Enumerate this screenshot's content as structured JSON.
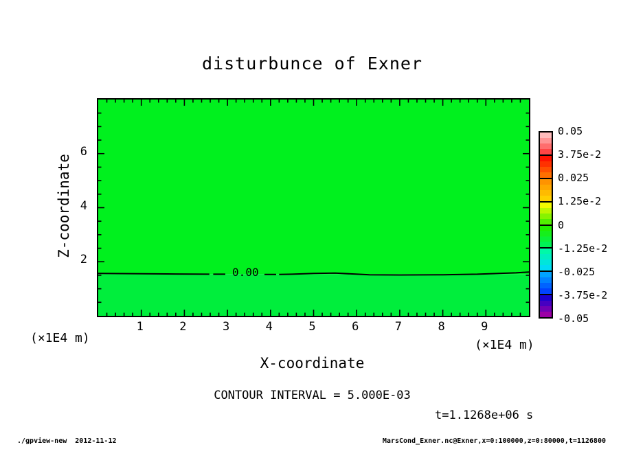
{
  "chart_data": {
    "type": "heatmap",
    "subtype": "filled-contour",
    "title": "disturbunce of Exner",
    "xlabel": "X-coordinate",
    "ylabel": "Z-coordinate",
    "x_unit_label_left": "(×1E4 m)",
    "x_unit_label_right": "(×1E4 m)",
    "xlim": [
      0,
      10
    ],
    "ylim": [
      0,
      8
    ],
    "x_ticks": [
      1,
      2,
      3,
      4,
      5,
      6,
      7,
      8,
      9
    ],
    "x_minor_step": 0.2,
    "y_ticks": [
      2,
      4,
      6
    ],
    "y_minor_step": 0.5,
    "grid": false,
    "fill_color_upper": "#00f11e",
    "fill_color_lower": "#00ee3c",
    "field_description": "near-zero field, uniform green band; single 0.00 contour at z≈1.55 (×1E4 m)",
    "contour": {
      "level": 0,
      "level_label": "0.00",
      "label_x": 3.45,
      "label_z": 1.54,
      "segments": [
        [
          [
            0,
            1.57
          ],
          [
            0.8,
            1.56
          ],
          [
            1.6,
            1.55
          ],
          [
            2.58,
            1.54
          ]
        ],
        [
          [
            2.67,
            1.54
          ],
          [
            2.95,
            1.54
          ]
        ],
        [
          [
            3.86,
            1.53
          ],
          [
            4.13,
            1.53
          ]
        ],
        [
          [
            4.2,
            1.53
          ],
          [
            4.5,
            1.54
          ],
          [
            5.0,
            1.57
          ],
          [
            5.5,
            1.58
          ],
          [
            5.9,
            1.55
          ],
          [
            6.3,
            1.52
          ],
          [
            7.0,
            1.51
          ],
          [
            8.0,
            1.52
          ],
          [
            8.8,
            1.54
          ],
          [
            9.3,
            1.57
          ],
          [
            9.7,
            1.59
          ],
          [
            10,
            1.62
          ]
        ]
      ]
    },
    "contour_interval_text": "CONTOUR INTERVAL = 5.000E-03",
    "time_label": "t=1.1268e+06 s",
    "colorbar": {
      "position": "right",
      "tick_labels": [
        "0.05",
        "3.75e-2",
        "0.025",
        "1.25e-2",
        "0",
        "-1.25e-2",
        "-0.025",
        "-3.75e-2",
        "-0.05"
      ],
      "value_range": [
        -0.05,
        0.05
      ],
      "steps_per_segment": 4,
      "segments": [
        {
          "from": "#ffbcbc",
          "to": "#ff4545"
        },
        {
          "from": "#ff1200",
          "to": "#ff6f00"
        },
        {
          "from": "#ff9300",
          "to": "#ffcf00"
        },
        {
          "from": "#f2fa00",
          "to": "#52ef00"
        },
        {
          "from": "#1fee00",
          "to": "#00f155"
        },
        {
          "from": "#00f9a8",
          "to": "#00dcf4"
        },
        {
          "from": "#00a2ff",
          "to": "#0043ff"
        },
        {
          "from": "#1c00cf",
          "to": "#9b00a5"
        }
      ]
    }
  },
  "footer": {
    "left": "./gpview-new  2012-11-12",
    "right": "MarsCond_Exner.nc@Exner,x=0:100000,z=0:80000,t=1126800"
  }
}
